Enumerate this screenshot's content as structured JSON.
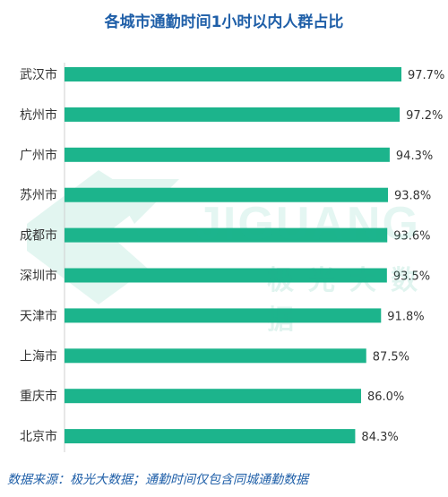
{
  "colors": {
    "bar": "#1cb48c",
    "title": "#1f5fa8",
    "label": "#333333"
  },
  "watermark": {
    "brand": "JIGUANG",
    "sub": "极光大数据"
  },
  "source": "数据来源：极光大数据；通勤时间仅包含同城通勤数据",
  "chart_data": {
    "type": "bar",
    "orientation": "horizontal",
    "title": "各城市通勤时间1小时以内人群占比",
    "categories": [
      "武汉市",
      "杭州市",
      "广州市",
      "苏州市",
      "成都市",
      "深圳市",
      "天津市",
      "上海市",
      "重庆市",
      "北京市"
    ],
    "values": [
      97.7,
      97.2,
      94.3,
      93.8,
      93.6,
      93.5,
      91.8,
      87.5,
      86.0,
      84.3
    ],
    "labels": [
      "97.7%",
      "97.2%",
      "94.3%",
      "93.8%",
      "93.6%",
      "93.5%",
      "91.8%",
      "87.5%",
      "86.0%",
      "84.3%"
    ],
    "xlim": [
      0,
      100
    ],
    "grid": false,
    "legend": "none"
  }
}
